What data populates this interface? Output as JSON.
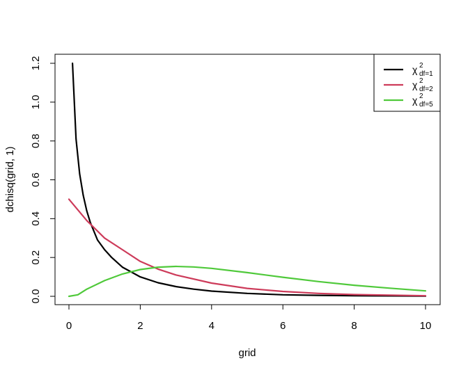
{
  "chart_data": {
    "type": "line",
    "xlabel": "grid",
    "ylabel": "dchisq(grid, 1)",
    "xlim": [
      0,
      10
    ],
    "ylim": [
      0,
      1.2
    ],
    "xticks": [
      0,
      2,
      4,
      6,
      8,
      10
    ],
    "yticks": [
      0.0,
      0.2,
      0.4,
      0.6,
      0.8,
      1.0,
      1.2
    ],
    "x_tick_labels": [
      "0",
      "2",
      "4",
      "6",
      "8",
      "10"
    ],
    "y_tick_labels": [
      "0.0",
      "0.2",
      "0.4",
      "0.6",
      "0.8",
      "1.0",
      "1.2"
    ],
    "grid": false,
    "legend_position": "top-right",
    "series": [
      {
        "legend_symbol": "χ",
        "legend_superscript": "2",
        "legend_subscript": "df=1",
        "color": "#000000",
        "x": [
          0.1,
          0.2,
          0.3,
          0.4,
          0.5,
          0.6,
          0.8,
          1.0,
          1.2,
          1.5,
          1.8,
          2.0,
          2.5,
          3.0,
          3.5,
          4.0,
          5.0,
          6.0,
          7.0,
          8.0,
          9.0,
          10.0
        ],
        "values": [
          1.2,
          0.81,
          0.63,
          0.52,
          0.44,
          0.38,
          0.29,
          0.24,
          0.2,
          0.15,
          0.12,
          0.1,
          0.07,
          0.05,
          0.037,
          0.027,
          0.015,
          0.008,
          0.005,
          0.003,
          0.002,
          0.001
        ]
      },
      {
        "legend_symbol": "χ",
        "legend_superscript": "2",
        "legend_subscript": "df=2",
        "color": "#cd3b5a",
        "x": [
          0.0,
          0.5,
          1.0,
          1.5,
          2.0,
          2.5,
          3.0,
          4.0,
          5.0,
          6.0,
          7.0,
          8.0,
          9.0,
          10.0
        ],
        "values": [
          0.5,
          0.39,
          0.3,
          0.24,
          0.18,
          0.14,
          0.11,
          0.068,
          0.041,
          0.025,
          0.015,
          0.009,
          0.006,
          0.003
        ]
      },
      {
        "legend_symbol": "χ",
        "legend_superscript": "2",
        "legend_subscript": "df=5",
        "color": "#4fc93a",
        "x": [
          0.0,
          0.25,
          0.5,
          1.0,
          1.5,
          2.0,
          2.5,
          3.0,
          3.5,
          4.0,
          5.0,
          6.0,
          7.0,
          8.0,
          9.0,
          10.0
        ],
        "values": [
          0.0,
          0.008,
          0.037,
          0.081,
          0.115,
          0.138,
          0.15,
          0.154,
          0.151,
          0.144,
          0.122,
          0.098,
          0.076,
          0.057,
          0.042,
          0.028
        ]
      }
    ]
  }
}
